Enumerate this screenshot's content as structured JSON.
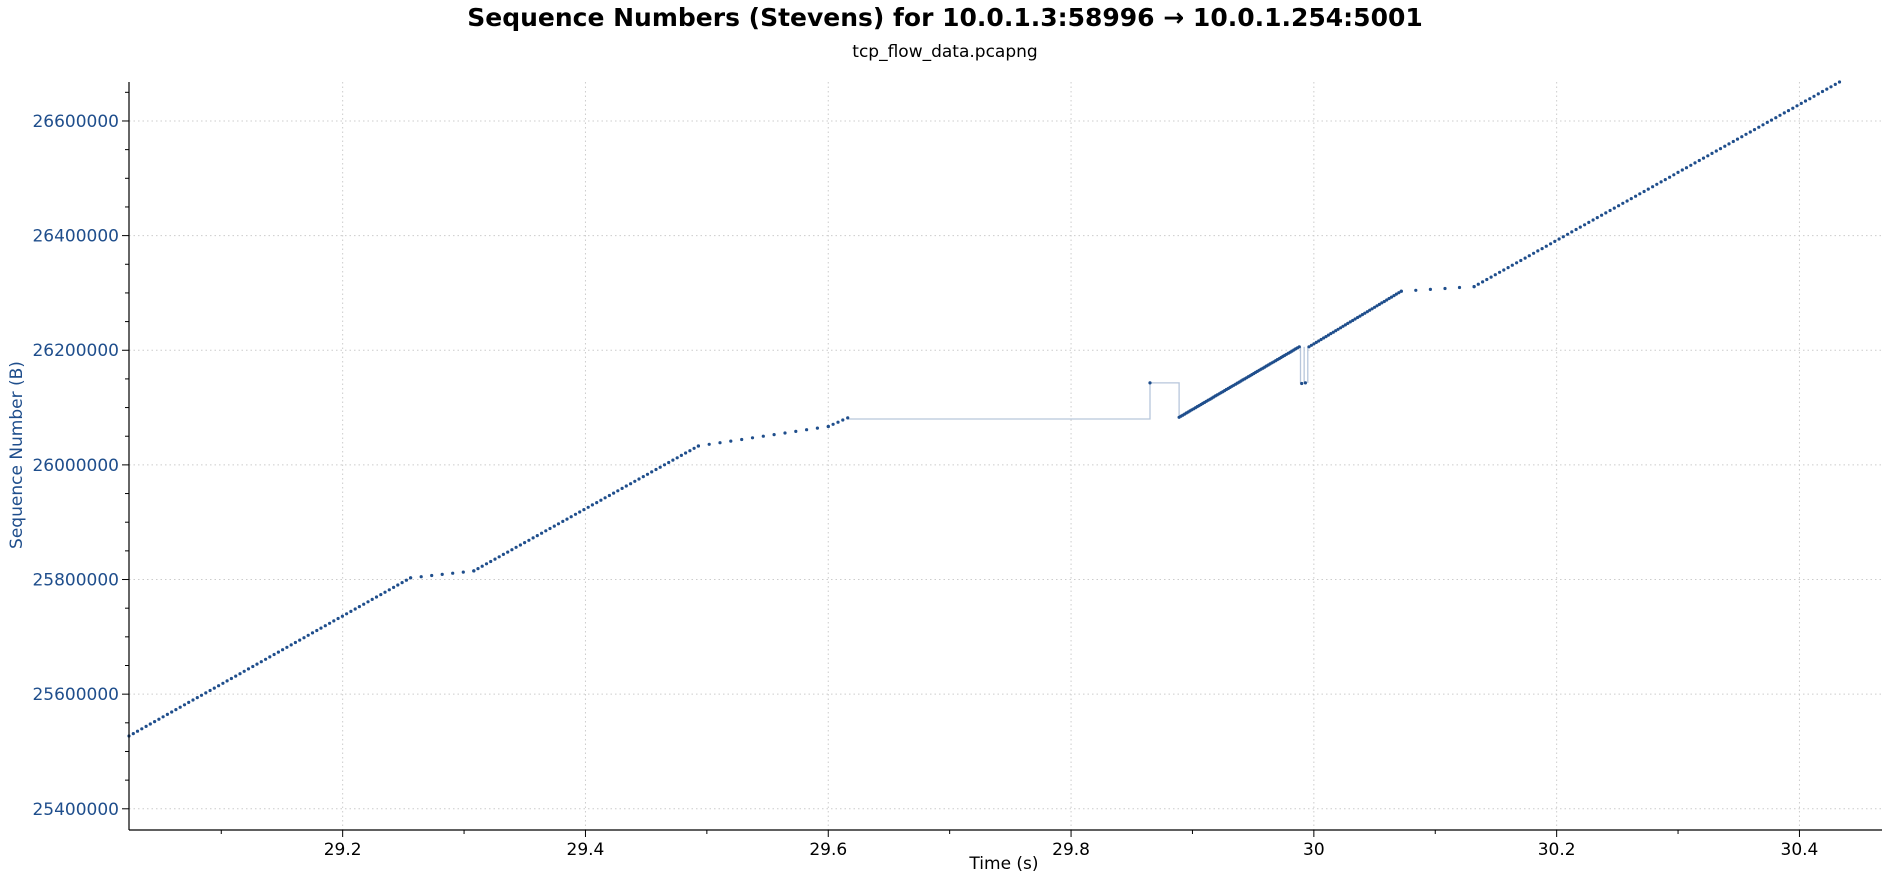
{
  "chart_data": {
    "type": "scatter",
    "title": "Sequence Numbers (Stevens) for 10.0.1.3:58996 → 10.0.1.254:5001",
    "subtitle": "tcp_flow_data.pcapng",
    "xlabel": "Time (s)",
    "ylabel": "Sequence Number (B)",
    "xlim": [
      29.024,
      30.468
    ],
    "ylim": [
      25363000,
      26668000
    ],
    "xticks": [
      29.2,
      29.4,
      29.6,
      29.8,
      30,
      30.2,
      30.4
    ],
    "xtick_labels": [
      "29.2",
      "29.4",
      "29.6",
      "29.8",
      "30",
      "30.2",
      "30.4"
    ],
    "yticks": [
      25400000,
      25600000,
      25800000,
      26000000,
      26200000,
      26400000,
      26600000
    ],
    "ytick_labels": [
      "25400000",
      "25600000",
      "25800000",
      "26000000",
      "26200000",
      "26400000",
      "26600000"
    ],
    "grid": true,
    "colors": {
      "series": "#1f4e8c",
      "ylabel": "#1f4e8c",
      "ytick": "#1f4e8c",
      "connector": "#b7c6db",
      "grid": "#cccccc"
    },
    "segments": [
      {
        "x0": 29.024,
        "x1": 29.256,
        "y0": 25527000,
        "y1": 25803000,
        "step": 0.0035
      },
      {
        "x0": 29.256,
        "x1": 29.308,
        "y0": 25803000,
        "y1": 25815000,
        "step": 0.009
      },
      {
        "x0": 29.308,
        "x1": 29.493,
        "y0": 25815000,
        "y1": 26033000,
        "step": 0.0035
      },
      {
        "x0": 29.493,
        "x1": 29.6,
        "y0": 26033000,
        "y1": 26067000,
        "step": 0.009
      },
      {
        "x0": 29.6,
        "x1": 29.616,
        "y0": 26067000,
        "y1": 26082000,
        "step": 0.004
      },
      {
        "x0": 29.889,
        "x1": 29.988,
        "y0": 26083000,
        "y1": 26206000,
        "step": 0.0015
      },
      {
        "x0": 29.996,
        "x1": 30.072,
        "y0": 26206000,
        "y1": 26303000,
        "step": 0.002
      },
      {
        "x0": 30.072,
        "x1": 30.132,
        "y0": 26303000,
        "y1": 26311000,
        "step": 0.012
      },
      {
        "x0": 30.132,
        "x1": 30.433,
        "y0": 26311000,
        "y1": 26668000,
        "step": 0.0035
      }
    ],
    "isolated_points": [
      {
        "x": 29.865,
        "y": 26143000
      },
      {
        "x": 29.99,
        "y": 26142000
      },
      {
        "x": 29.993,
        "y": 26143000
      }
    ],
    "connector_line": [
      [
        29.616,
        26080000
      ],
      [
        29.865,
        26080000
      ],
      [
        29.865,
        26143000
      ],
      [
        29.889,
        26143000
      ],
      [
        29.889,
        26083000
      ]
    ],
    "retransmit_drops": [
      {
        "x": 29.989,
        "ytop": 26206000,
        "ybottom": 26142000
      },
      {
        "x": 29.992,
        "ytop": 26206000,
        "ybottom": 26142000
      },
      {
        "x": 29.995,
        "ytop": 26206000,
        "ybottom": 26143000
      }
    ]
  }
}
